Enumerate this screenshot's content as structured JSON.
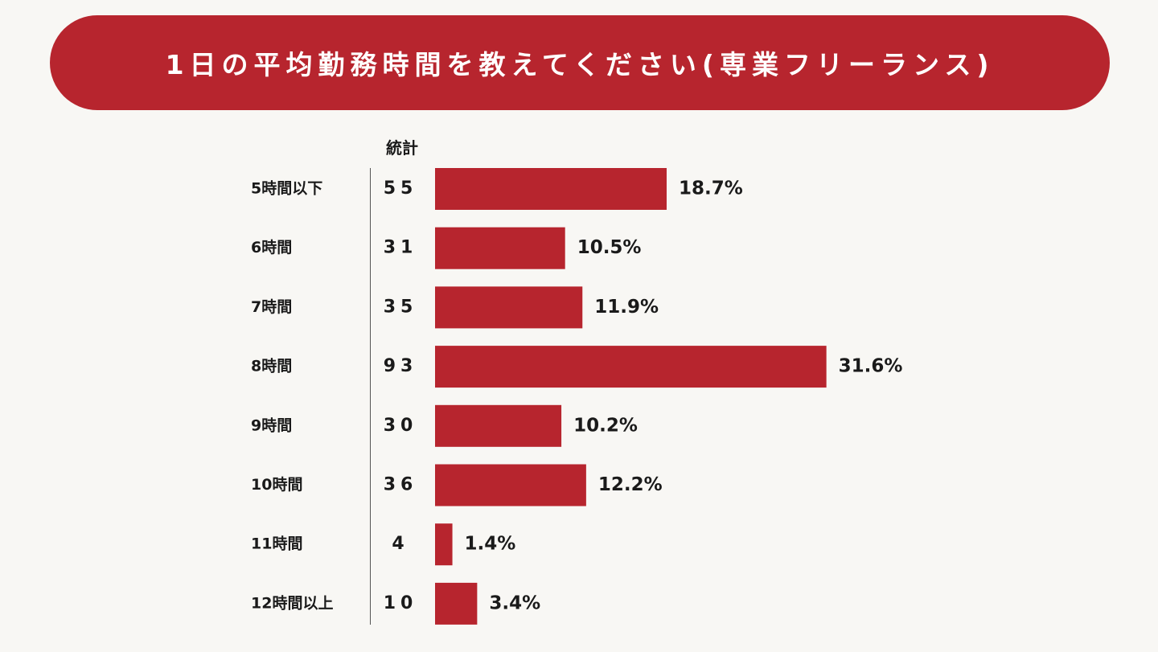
{
  "title": "1日の平均勤務時間を教えてください(専業フリーランス)",
  "column_header": "統計",
  "colors": {
    "bar": "#b7252e",
    "banner": "#b7252e",
    "background": "#f8f7f4"
  },
  "chart_data": {
    "type": "bar",
    "orientation": "horizontal",
    "title": "1日の平均勤務時間を教えてください(専業フリーランス)",
    "categories": [
      "5時間以下",
      "6時間",
      "7時間",
      "8時間",
      "9時間",
      "10時間",
      "11時間",
      "12時間以上"
    ],
    "counts": [
      "55",
      "31",
      "35",
      "93",
      "30",
      "36",
      "4",
      "10"
    ],
    "values": [
      18.7,
      10.5,
      11.9,
      31.6,
      10.2,
      12.2,
      1.4,
      3.4
    ],
    "value_labels": [
      "18.7%",
      "10.5%",
      "11.9%",
      "31.6%",
      "10.2%",
      "12.2%",
      "1.4%",
      "3.4%"
    ],
    "grid": false
  }
}
